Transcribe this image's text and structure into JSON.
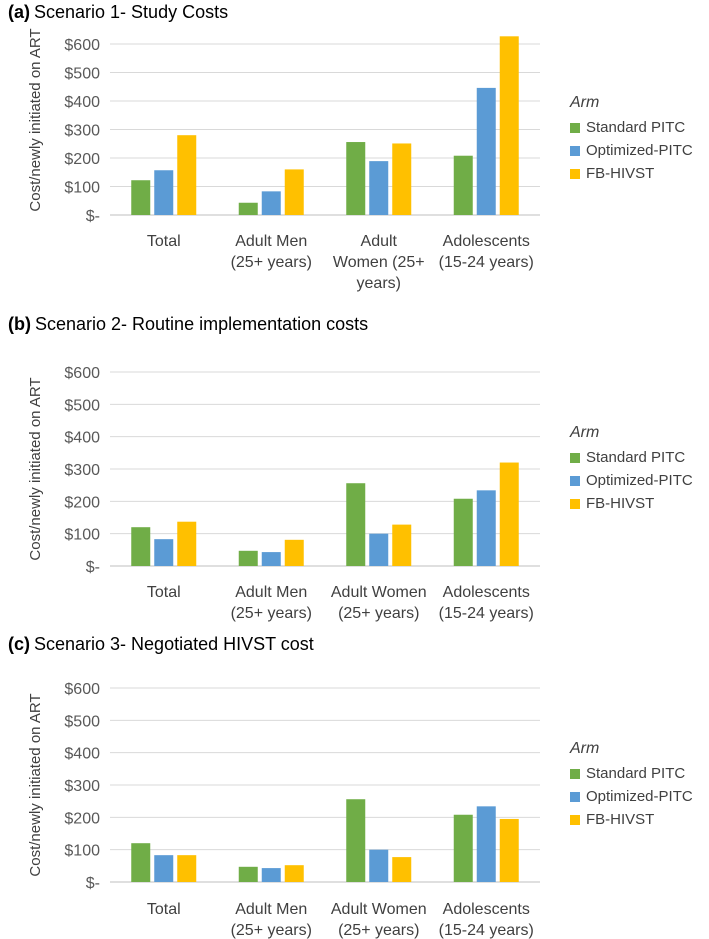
{
  "colors": {
    "Standard PITC": "#70ad47",
    "Optimized-PITC": "#5b9bd5",
    "FB-HIVST": "#ffc000"
  },
  "chart_data": [
    {
      "type": "bar",
      "panel_label": "(a)",
      "title": "Scenario 1- Study Costs",
      "ylabel": "Cost/newly initiated on ART",
      "ylim": [
        0,
        600
      ],
      "yticks": [
        "$-",
        "$100",
        "$200",
        "$300",
        "$400",
        "$500",
        "$600"
      ],
      "categories": [
        [
          "Total"
        ],
        [
          "Adult Men",
          "(25+ years)"
        ],
        [
          "Adult",
          "Women (25+",
          "years)"
        ],
        [
          "Adolescents",
          "(15-24 years)"
        ]
      ],
      "legend_title": "Arm",
      "series": [
        {
          "name": "Standard PITC",
          "values": [
            122,
            43,
            256,
            208
          ]
        },
        {
          "name": "Optimized-PITC",
          "values": [
            157,
            83,
            189,
            446
          ]
        },
        {
          "name": "FB-HIVST",
          "values": [
            280,
            160,
            251,
            627
          ]
        }
      ]
    },
    {
      "type": "bar",
      "panel_label": "(b)",
      "title": "Scenario 2- Routine implementation costs",
      "ylabel": "Cost/newly initiated on ART",
      "ylim": [
        0,
        600
      ],
      "yticks": [
        "$-",
        "$100",
        "$200",
        "$300",
        "$400",
        "$500",
        "$600"
      ],
      "categories": [
        [
          "Total"
        ],
        [
          "Adult Men",
          "(25+ years)"
        ],
        [
          "Adult Women",
          "(25+ years)"
        ],
        [
          "Adolescents",
          "(15-24 years)"
        ]
      ],
      "legend_title": "Arm",
      "series": [
        {
          "name": "Standard PITC",
          "values": [
            120,
            47,
            256,
            208
          ]
        },
        {
          "name": "Optimized-PITC",
          "values": [
            83,
            43,
            100,
            234
          ]
        },
        {
          "name": "FB-HIVST",
          "values": [
            137,
            81,
            128,
            320
          ]
        }
      ]
    },
    {
      "type": "bar",
      "panel_label": "(c)",
      "title": "Scenario 3- Negotiated HIVST cost",
      "ylabel": "Cost/newly initiated on ART",
      "ylim": [
        0,
        600
      ],
      "yticks": [
        "$-",
        "$100",
        "$200",
        "$300",
        "$400",
        "$500",
        "$600"
      ],
      "categories": [
        [
          "Total"
        ],
        [
          "Adult Men",
          "(25+ years)"
        ],
        [
          "Adult Women",
          "(25+ years)"
        ],
        [
          "Adolescents",
          "(15-24 years)"
        ]
      ],
      "legend_title": "Arm",
      "series": [
        {
          "name": "Standard PITC",
          "values": [
            120,
            47,
            256,
            208
          ]
        },
        {
          "name": "Optimized-PITC",
          "values": [
            83,
            43,
            100,
            234
          ]
        },
        {
          "name": "FB-HIVST",
          "values": [
            83,
            52,
            77,
            195
          ]
        }
      ]
    }
  ]
}
